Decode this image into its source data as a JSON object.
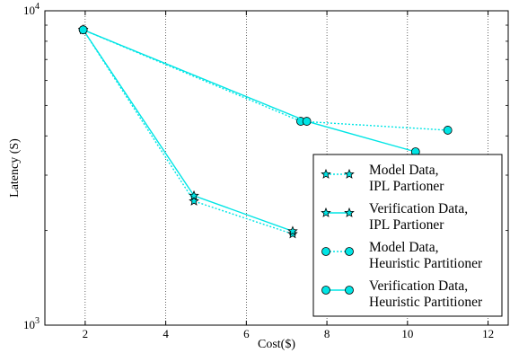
{
  "chart_data": {
    "type": "line",
    "title": "",
    "xlabel": "Cost($)",
    "ylabel": "Latency (S)",
    "xlim": [
      1,
      12.5
    ],
    "ylim": [
      1000,
      10000
    ],
    "yscale": "log",
    "grid": "vertical dotted lines at x ticks",
    "legend_placement": "lower-right",
    "x_ticks": [
      2,
      4,
      6,
      8,
      10,
      12
    ],
    "x_tick_labels": [
      "2",
      "4",
      "6",
      "8",
      "10",
      "12"
    ],
    "y_ticks": [
      1000,
      10000
    ],
    "y_tick_labels": [
      {
        "base": "10",
        "exp": "3"
      },
      {
        "base": "10",
        "exp": "4"
      }
    ],
    "series": [
      {
        "name": "Model Data, IPL Partioner",
        "legend_lines": [
          "Model Data,",
          "IPL Partioner"
        ],
        "color": "#00e5e5",
        "line_style": "dotted",
        "marker": "star",
        "x": [
          1.95,
          4.7,
          7.15
        ],
        "y": [
          8700,
          2480,
          1950
        ]
      },
      {
        "name": "Verification Data, IPL Partioner",
        "legend_lines": [
          "Verification Data,",
          "IPL Partioner"
        ],
        "color": "#00e5e5",
        "line_style": "solid",
        "marker": "star",
        "x": [
          1.95,
          4.7,
          7.15
        ],
        "y": [
          8700,
          2580,
          1990
        ]
      },
      {
        "name": "Model Data, Heuristic Partitioner",
        "legend_lines": [
          "Model Data,",
          "Heuristic Partitioner"
        ],
        "color": "#00e5e5",
        "line_style": "dotted",
        "marker": "circle",
        "x": [
          1.95,
          7.35,
          11.0
        ],
        "y": [
          8700,
          4450,
          4170
        ]
      },
      {
        "name": "Verification Data, Heuristic Partitioner",
        "legend_lines": [
          "Verification Data,",
          "Heuristic Partitioner"
        ],
        "color": "#00e5e5",
        "line_style": "solid",
        "marker": "circle",
        "x": [
          1.95,
          7.5,
          10.2
        ],
        "y": [
          8700,
          4450,
          3560
        ]
      }
    ]
  }
}
